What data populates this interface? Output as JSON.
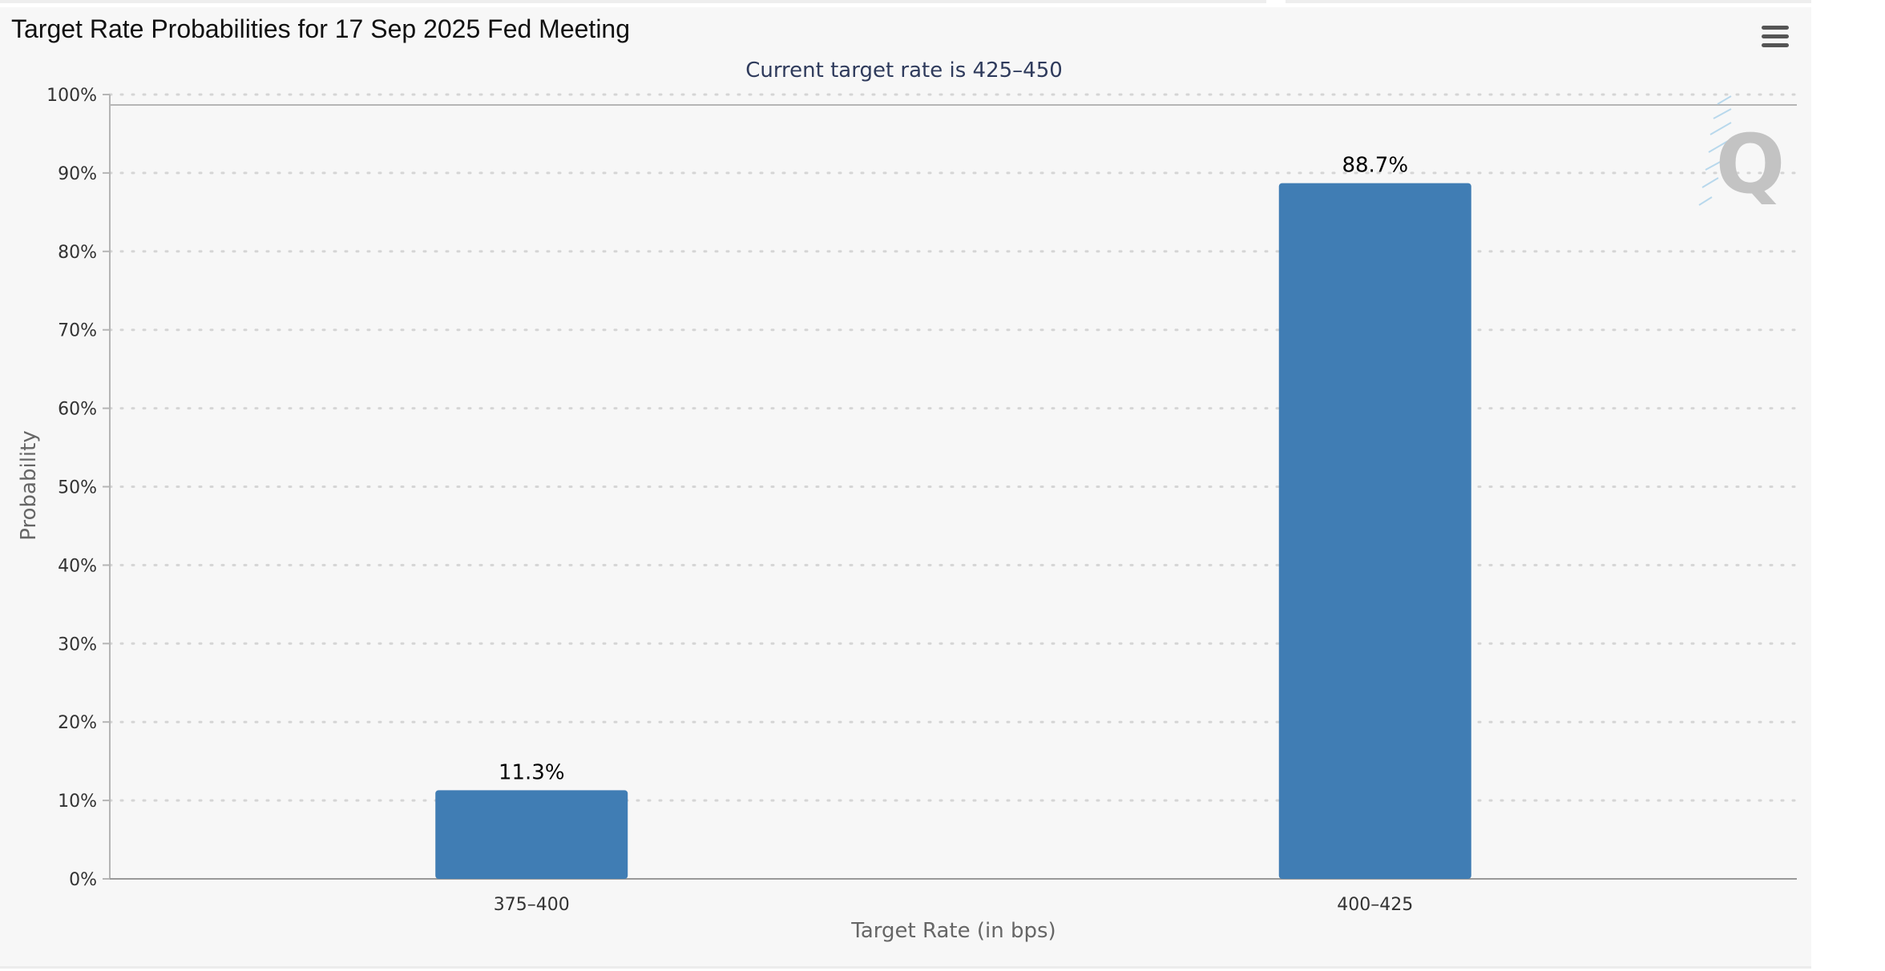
{
  "header": {
    "title": "Target Rate Probabilities for 17 Sep 2025 Fed Meeting",
    "menu_icon": "hamburger-menu-icon"
  },
  "watermark": {
    "icon": "q-logo-icon",
    "text": "Q"
  },
  "colors": {
    "bar": "#407db4",
    "grid": "#d5d5d5",
    "axis": "#b5b5b5",
    "background": "#f7f7f7",
    "subtitle": "#2f3b5c"
  },
  "chart_data": {
    "type": "bar",
    "title": "",
    "subtitle": "Current target rate is 425–450",
    "categories": [
      "375–400",
      "400–425"
    ],
    "series": [
      {
        "values": [
          11.3,
          88.7
        ],
        "labels": [
          "11.3%",
          "88.7%"
        ]
      }
    ],
    "xlabel": "Target Rate (in bps)",
    "ylabel": "Probability",
    "ylim": [
      0,
      100
    ],
    "yticks": [
      "0%",
      "10%",
      "20%",
      "30%",
      "40%",
      "50%",
      "60%",
      "70%",
      "80%",
      "90%",
      "100%"
    ],
    "grid": true,
    "legend": "none"
  }
}
